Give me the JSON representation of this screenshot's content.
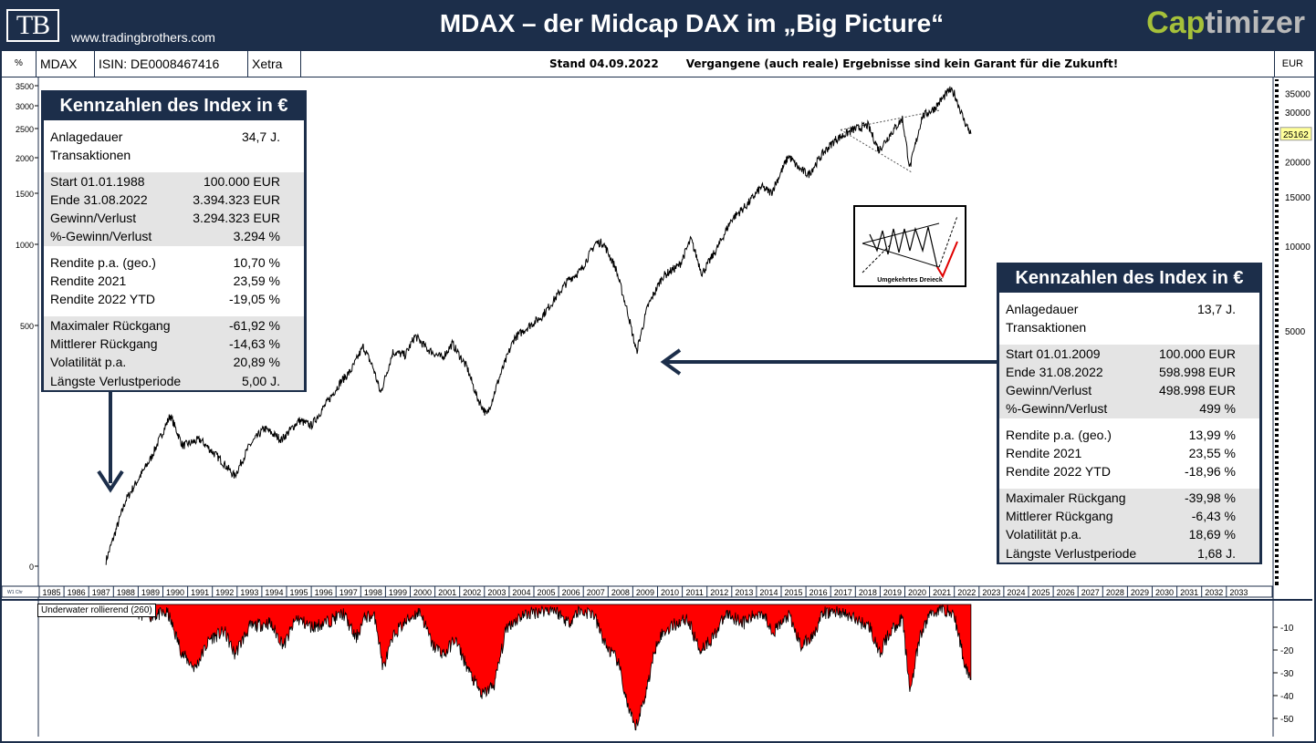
{
  "header": {
    "logo_text": "TB",
    "website": "www.tradingbrothers.com",
    "title": "MDAX – der Midcap DAX im „Big Picture“",
    "brand_part1": "Cap",
    "brand_part2": "timizer"
  },
  "toolbar": {
    "percent_label": "%",
    "symbol": "MDAX",
    "isin": "ISIN: DE0008467416",
    "exchange": "Xetra",
    "date_note": "Stand 04.09.2022",
    "disclaimer": "Vergangene (auch reale) Ergebnisse sind kein Garant für die Zukunft!",
    "currency": "EUR"
  },
  "panel_left": {
    "title": "Kennzahlen des Index in €",
    "rows": [
      {
        "label": "Anlagedauer",
        "value": "34,7 J.",
        "shaded": false
      },
      {
        "label": "Transaktionen",
        "value": "",
        "shaded": false
      },
      {
        "gap": true
      },
      {
        "label": "Start  01.01.1988",
        "value": "100.000 EUR",
        "shaded": true
      },
      {
        "label": "Ende  31.08.2022",
        "value": "3.394.323 EUR",
        "shaded": true
      },
      {
        "label": "Gewinn/Verlust",
        "value": "3.294.323 EUR",
        "shaded": true
      },
      {
        "label": "%-Gewinn/Verlust",
        "value": "3.294 %",
        "shaded": true
      },
      {
        "gap": true
      },
      {
        "label": "Rendite p.a. (geo.)",
        "value": "10,70 %",
        "shaded": false
      },
      {
        "label": "Rendite 2021",
        "value": "23,59 %",
        "shaded": false
      },
      {
        "label": "Rendite 2022 YTD",
        "value": "-19,05 %",
        "shaded": false
      },
      {
        "gap": true
      },
      {
        "label": "Maximaler Rückgang",
        "value": "-61,92 %",
        "shaded": true
      },
      {
        "label": "Mittlerer Rückgang",
        "value": "-14,63 %",
        "shaded": true
      },
      {
        "label": "Volatilität p.a.",
        "value": "20,89 %",
        "shaded": true
      },
      {
        "label": "Längste Verlustperiode",
        "value": "5,00 J.",
        "shaded": true
      }
    ]
  },
  "panel_right": {
    "title": "Kennzahlen des Index in €",
    "rows": [
      {
        "label": "Anlagedauer",
        "value": "13,7 J.",
        "shaded": false
      },
      {
        "label": "Transaktionen",
        "value": "",
        "shaded": false
      },
      {
        "gap": true
      },
      {
        "label": "Start  01.01.2009",
        "value": "100.000 EUR",
        "shaded": true
      },
      {
        "label": "Ende  31.08.2022",
        "value": "598.998 EUR",
        "shaded": true
      },
      {
        "label": "Gewinn/Verlust",
        "value": "498.998 EUR",
        "shaded": true
      },
      {
        "label": "%-Gewinn/Verlust",
        "value": "499 %",
        "shaded": true
      },
      {
        "gap": true
      },
      {
        "label": "Rendite p.a. (geo.)",
        "value": "13,99 %",
        "shaded": false
      },
      {
        "label": "Rendite 2021",
        "value": "23,55 %",
        "shaded": false
      },
      {
        "label": "Rendite 2022 YTD",
        "value": "-18,96 %",
        "shaded": false
      },
      {
        "gap": true
      },
      {
        "label": "Maximaler Rückgang",
        "value": "-39,98 %",
        "shaded": true
      },
      {
        "label": "Mittlerer Rückgang",
        "value": "-6,43 %",
        "shaded": true
      },
      {
        "label": "Volatilität p.a.",
        "value": "18,69 %",
        "shaded": true
      },
      {
        "label": "Längste Verlustperiode",
        "value": "1,68 J.",
        "shaded": true
      }
    ]
  },
  "pattern": {
    "caption": "Umgekehrtes Dreieck"
  },
  "colors": {
    "navy": "#1c2e4a",
    "drawdown": "#ff0000",
    "price": "#000000",
    "last_price_bg": "#ffff99"
  },
  "chart_data": [
    {
      "type": "line",
      "series": [
        {
          "x": [
            1987.7,
            1988.5,
            1989.5,
            1990.3,
            1990.8,
            1991.5,
            1992.3,
            1992.9,
            1993.5,
            1994.1,
            1994.8,
            1995.5,
            1996.0,
            1996.6,
            1997.2,
            1997.6,
            1998.1,
            1998.5,
            1998.8,
            1999.3,
            1999.8,
            2000.2,
            2000.7,
            2001.3,
            2001.7,
            2002.3,
            2002.7,
            2003.1,
            2003.6,
            2004.2,
            2004.8,
            2005.3,
            2005.9,
            2006.4,
            2006.9,
            2007.5,
            2007.8,
            2008.3,
            2008.8,
            2009.15,
            2009.6,
            2010.2,
            2010.9,
            2011.35,
            2011.8,
            2012.4,
            2013.0,
            2013.6,
            2014.2,
            2014.6,
            2015.3,
            2015.7,
            2016.1,
            2016.7,
            2017.2,
            2017.9,
            2018.5,
            2018.95,
            2019.4,
            2019.9,
            2020.2,
            2020.7,
            2021.2,
            2021.8,
            2022.0,
            2022.4,
            2022.67
          ],
          "y": [
            760,
            1250,
            1750,
            2500,
            1950,
            2050,
            1750,
            1520,
            1950,
            2250,
            2050,
            2400,
            2300,
            2750,
            3300,
            3600,
            4400,
            3700,
            3000,
            4200,
            4100,
            4800,
            4300,
            4000,
            4500,
            3700,
            2900,
            2500,
            3400,
            4700,
            5200,
            5600,
            6600,
            7600,
            8200,
            10300,
            10300,
            8400,
            5800,
            4200,
            6100,
            7800,
            8600,
            10600,
            8000,
            9800,
            12500,
            14000,
            16300,
            15500,
            21000,
            19000,
            18000,
            21500,
            24000,
            26000,
            27000,
            22000,
            25000,
            28500,
            19000,
            29000,
            31000,
            36000,
            35000,
            28000,
            25162
          ]
        }
      ],
      "ylabel_left": "",
      "left_ticks": [
        "3500",
        "3000",
        "2500",
        "2000",
        "1500",
        "1000",
        "500",
        "0"
      ],
      "right_ticks": [
        "35000",
        "30000",
        "25000",
        "20000",
        "15000",
        "10000",
        "5000"
      ],
      "last_value": "25162",
      "x_ticks": [
        "1985",
        "1986",
        "1987",
        "1988",
        "1989",
        "1990",
        "1991",
        "1992",
        "1993",
        "1994",
        "1995",
        "1996",
        "1997",
        "1998",
        "1999",
        "2000",
        "2001",
        "2002",
        "2003",
        "2004",
        "2005",
        "2006",
        "2007",
        "2008",
        "2009",
        "2010",
        "2011",
        "2012",
        "2013",
        "2014",
        "2015",
        "2016",
        "2017",
        "2018",
        "2019",
        "2020",
        "2021",
        "2022",
        "2023",
        "2024",
        "2025",
        "2026",
        "2027",
        "2028",
        "2029",
        "2030",
        "2031",
        "2032",
        "2033"
      ],
      "x_tick_label_scale": "W1 Chr",
      "scale": "log"
    },
    {
      "type": "area",
      "title": "Underwater rollierend (260)",
      "series": [
        {
          "x": [
            1987.7,
            1988.8,
            1989.4,
            1990.2,
            1990.8,
            1991.3,
            1991.9,
            1992.5,
            1992.9,
            1993.5,
            1994.3,
            1994.9,
            1995.4,
            1996.0,
            1996.6,
            1997.3,
            1997.8,
            1998.2,
            1998.6,
            1998.9,
            1999.4,
            2000.1,
            2000.4,
            2000.9,
            2001.4,
            2001.8,
            2002.4,
            2002.9,
            2003.4,
            2003.9,
            2004.5,
            2005.2,
            2005.8,
            2006.4,
            2006.8,
            2007.4,
            2007.9,
            2008.4,
            2008.8,
            2009.1,
            2009.5,
            2010.0,
            2010.5,
            2011.2,
            2011.7,
            2012.2,
            2012.8,
            2013.5,
            2014.2,
            2014.7,
            2015.3,
            2015.8,
            2016.2,
            2016.7,
            2017.3,
            2017.9,
            2018.6,
            2018.95,
            2019.4,
            2019.9,
            2020.2,
            2020.6,
            2021.0,
            2021.6,
            2022.0,
            2022.4,
            2022.67
          ],
          "y": [
            0,
            -3,
            -5,
            -4,
            -22,
            -28,
            -15,
            -12,
            -22,
            -10,
            -8,
            -18,
            -6,
            -10,
            -8,
            -4,
            -15,
            -5,
            -6,
            -28,
            -12,
            -5,
            -3,
            -18,
            -22,
            -15,
            -30,
            -40,
            -35,
            -10,
            -5,
            -3,
            -2,
            -8,
            -3,
            -4,
            -18,
            -25,
            -45,
            -55,
            -40,
            -15,
            -10,
            -6,
            -20,
            -15,
            -4,
            -8,
            -3,
            -12,
            -5,
            -18,
            -15,
            -4,
            -3,
            -6,
            -10,
            -22,
            -12,
            -6,
            -38,
            -15,
            -4,
            -2,
            -5,
            -25,
            -33
          ]
        }
      ],
      "y_ticks": [
        "-10",
        "-20",
        "-30",
        "-40",
        "-50"
      ],
      "ylim": [
        -60,
        0
      ]
    }
  ]
}
